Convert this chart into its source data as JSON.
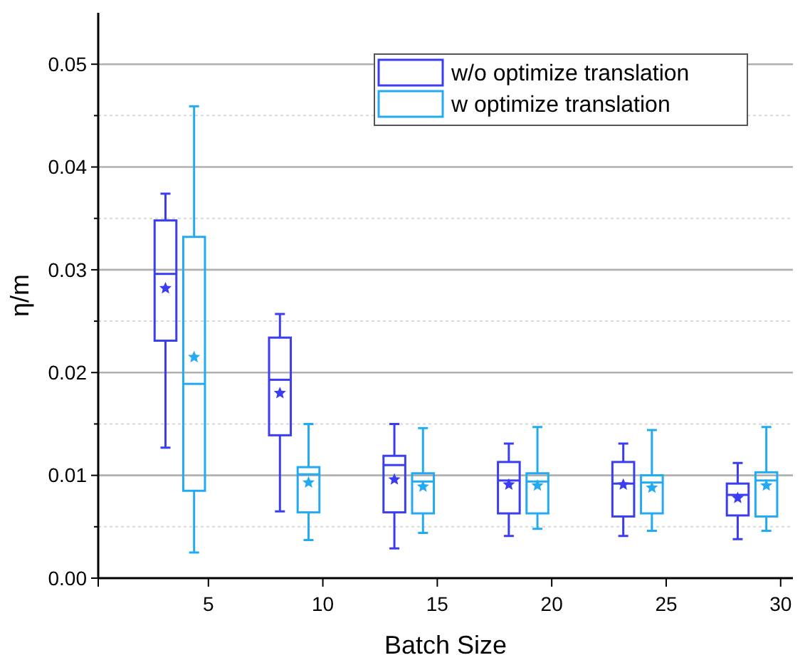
{
  "chart_data": {
    "type": "box",
    "xlabel": "Batch Size",
    "ylabel": "η/m",
    "categories": [
      "5",
      "10",
      "15",
      "20",
      "25",
      "30"
    ],
    "ylim": [
      0,
      0.055
    ],
    "yticks": [
      {
        "value": 0,
        "label": "0.00"
      },
      {
        "value": 0.005,
        "label": null
      },
      {
        "value": 0.01,
        "label": "0.01"
      },
      {
        "value": 0.015,
        "label": null
      },
      {
        "value": 0.02,
        "label": "0.02"
      },
      {
        "value": 0.025,
        "label": null
      },
      {
        "value": 0.03,
        "label": "0.03"
      },
      {
        "value": 0.035,
        "label": null
      },
      {
        "value": 0.04,
        "label": "0.04"
      },
      {
        "value": 0.045,
        "label": null
      },
      {
        "value": 0.05,
        "label": "0.05"
      }
    ],
    "grid": "y",
    "legend": "top right",
    "marker": "star",
    "series": [
      {
        "name": "w/o optimize translation",
        "color": "#3b3ef0",
        "boxes": [
          {
            "low": 0.0127,
            "q1": 0.0231,
            "median": 0.0296,
            "q3": 0.0348,
            "high": 0.0374,
            "mean": 0.0282
          },
          {
            "low": 0.0065,
            "q1": 0.0139,
            "median": 0.0193,
            "q3": 0.0234,
            "high": 0.0257,
            "mean": 0.018
          },
          {
            "low": 0.0029,
            "q1": 0.0064,
            "median": 0.011,
            "q3": 0.0119,
            "high": 0.015,
            "mean": 0.0096
          },
          {
            "low": 0.0041,
            "q1": 0.0063,
            "median": 0.0095,
            "q3": 0.0113,
            "high": 0.0131,
            "mean": 0.0091
          },
          {
            "low": 0.0041,
            "q1": 0.006,
            "median": 0.0092,
            "q3": 0.0113,
            "high": 0.0131,
            "mean": 0.0091
          },
          {
            "low": 0.0038,
            "q1": 0.0061,
            "median": 0.0081,
            "q3": 0.0092,
            "high": 0.0112,
            "mean": 0.0078
          }
        ]
      },
      {
        "name": "w optimize translation",
        "color": "#22aaf2",
        "boxes": [
          {
            "low": 0.0025,
            "q1": 0.0085,
            "median": 0.0189,
            "q3": 0.0332,
            "high": 0.0459,
            "mean": 0.0215
          },
          {
            "low": 0.0037,
            "q1": 0.0064,
            "median": 0.0101,
            "q3": 0.0108,
            "high": 0.015,
            "mean": 0.0093
          },
          {
            "low": 0.0044,
            "q1": 0.0063,
            "median": 0.0094,
            "q3": 0.0102,
            "high": 0.0146,
            "mean": 0.0089
          },
          {
            "low": 0.0048,
            "q1": 0.0063,
            "median": 0.0094,
            "q3": 0.0102,
            "high": 0.0147,
            "mean": 0.009
          },
          {
            "low": 0.0046,
            "q1": 0.0063,
            "median": 0.0093,
            "q3": 0.01,
            "high": 0.0144,
            "mean": 0.0088
          },
          {
            "low": 0.0046,
            "q1": 0.006,
            "median": 0.0095,
            "q3": 0.0103,
            "high": 0.0147,
            "mean": 0.009
          }
        ]
      }
    ]
  }
}
